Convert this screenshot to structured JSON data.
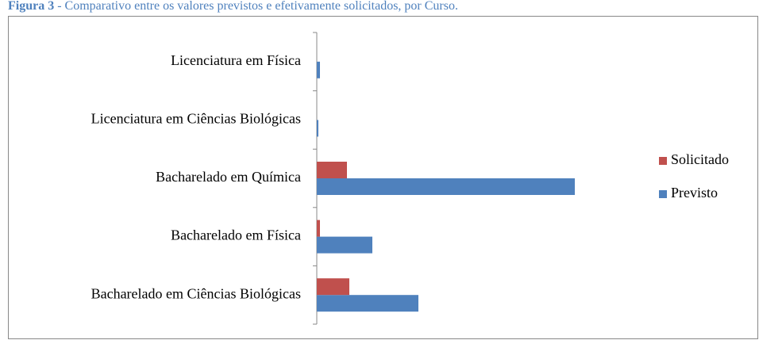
{
  "chart_data": {
    "type": "hbar",
    "title_label": "Figura 3",
    "title": "- Comparativo entre os valores previstos e efetivamente solicitados, por Curso.",
    "categories": [
      "Bacharelado em Ciências Biológicas",
      "Bacharelado em Física",
      "Bacharelado em Química",
      "Licenciatura em Ciências Biológicas",
      "Licenciatura em Física"
    ],
    "series": [
      {
        "name": "Previsto",
        "color": "#4f81bd",
        "values": [
          128,
          70,
          325,
          2,
          4
        ]
      },
      {
        "name": "Solicitado",
        "color": "#c0504d",
        "values": [
          41,
          4,
          38,
          0,
          0
        ]
      }
    ],
    "xlim": [
      0,
      400
    ],
    "legend": "right"
  }
}
